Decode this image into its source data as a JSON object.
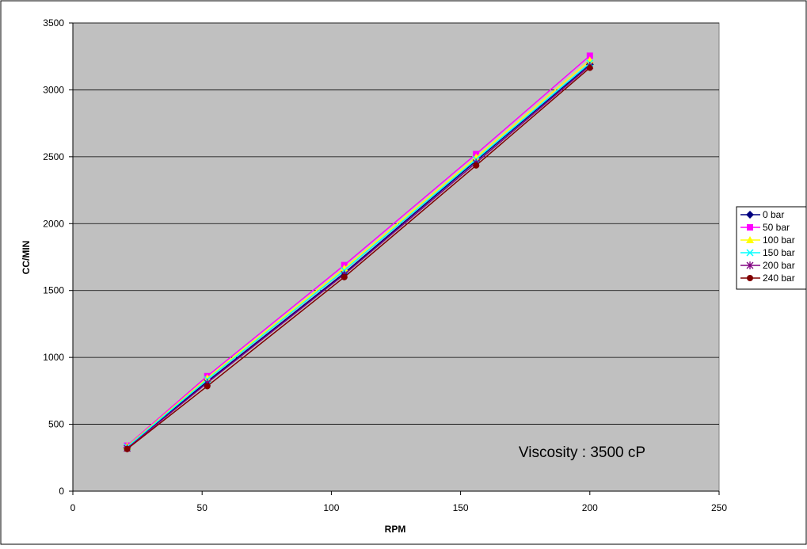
{
  "chart_data": {
    "type": "line",
    "title": "",
    "xlabel": "RPM",
    "ylabel": "CC/MIN",
    "xlim": [
      0,
      250
    ],
    "ylim": [
      0,
      3500
    ],
    "xticks": [
      0,
      50,
      100,
      150,
      200,
      250
    ],
    "yticks": [
      0,
      500,
      1000,
      1500,
      2000,
      2500,
      3000,
      3500
    ],
    "xtick_labels": [
      "0",
      "50",
      "100",
      "150",
      "200",
      "250"
    ],
    "ytick_labels": [
      "0",
      "500",
      "1000",
      "1500",
      "2000",
      "2500",
      "3000",
      "3500"
    ],
    "grid": "horizontal",
    "legend_position": "right",
    "annotation": "Viscosity : 3500 cP",
    "x": [
      21,
      52,
      105,
      156,
      200
    ],
    "series": [
      {
        "name": "0 bar",
        "color": "#000080",
        "marker": "diamond",
        "values": [
          325,
          820,
          1630,
          2470,
          3190
        ]
      },
      {
        "name": "50 bar",
        "color": "#ff00ff",
        "marker": "square",
        "values": [
          340,
          860,
          1690,
          2520,
          3255
        ]
      },
      {
        "name": "100 bar",
        "color": "#ffff00",
        "marker": "triangle",
        "values": [
          335,
          845,
          1665,
          2495,
          3220
        ]
      },
      {
        "name": "150 bar",
        "color": "#00ffff",
        "marker": "x",
        "values": [
          330,
          835,
          1650,
          2480,
          3200
        ]
      },
      {
        "name": "200 bar",
        "color": "#800080",
        "marker": "star",
        "values": [
          320,
          810,
          1620,
          2455,
          3180
        ]
      },
      {
        "name": "240 bar",
        "color": "#800000",
        "marker": "circle",
        "values": [
          315,
          785,
          1600,
          2435,
          3165
        ]
      }
    ]
  }
}
